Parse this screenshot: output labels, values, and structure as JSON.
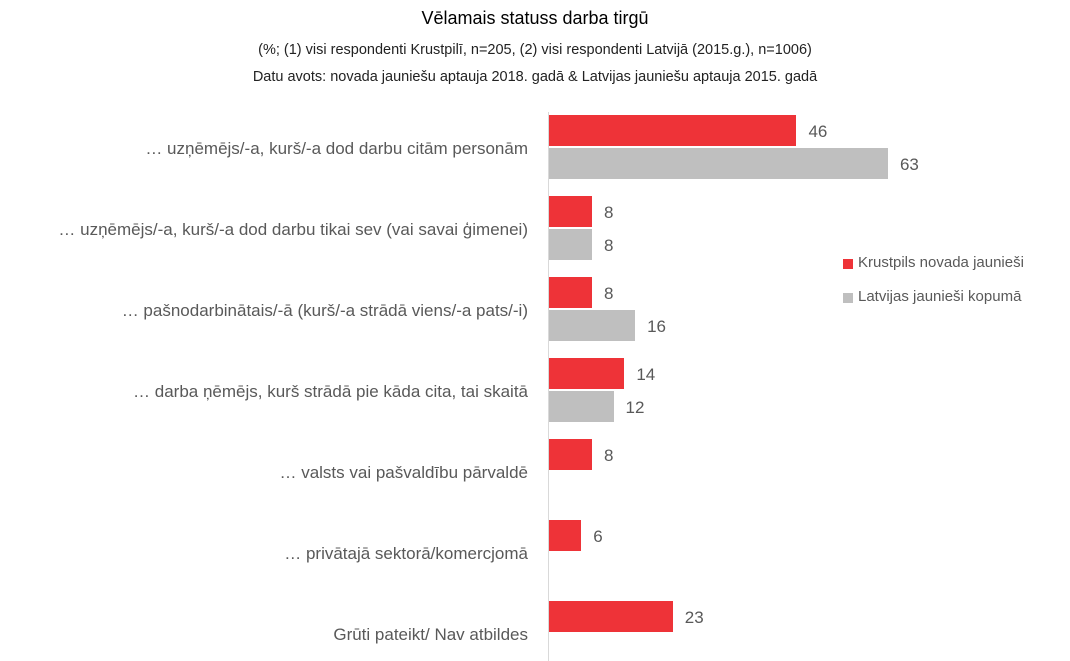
{
  "chart_data": {
    "type": "bar",
    "orientation": "horizontal",
    "title": "Vēlamais statuss darba tirgū",
    "subtitle": [
      "(%; (1) visi respondenti Krustpilī, n=205, (2) visi respondenti Latvijā (2015.g.), n=1006)",
      "Datu avots: novada jauniešu aptauja 2018. gadā & Latvijas jauniešu aptauja 2015. gadā"
    ],
    "categories": [
      "… uzņēmējs/-a, kurš/-a dod darbu citām personām",
      "… uzņēmējs/-a, kurš/-a dod darbu tikai sev (vai savai ģimenei)",
      "… pašnodarbinātais/-ā (kurš/-a strādā viens/-a pats/-i)",
      "… darba ņēmējs, kurš strādā pie kāda cita, tai skaitā",
      "… valsts vai pašvaldību pārvaldē",
      "… privātajā sektorā/komercjomā",
      "Grūti pateikt/ Nav atbildes"
    ],
    "series": [
      {
        "name": "Krustpils novada jaunieši",
        "color": "#ee3338",
        "values": [
          46,
          8,
          8,
          14,
          8,
          6,
          23
        ]
      },
      {
        "name": "Latvijas jaunieši kopumā",
        "color": "#bfbfbf",
        "values": [
          63,
          8,
          16,
          12,
          null,
          null,
          null
        ]
      }
    ],
    "legend": "right"
  }
}
